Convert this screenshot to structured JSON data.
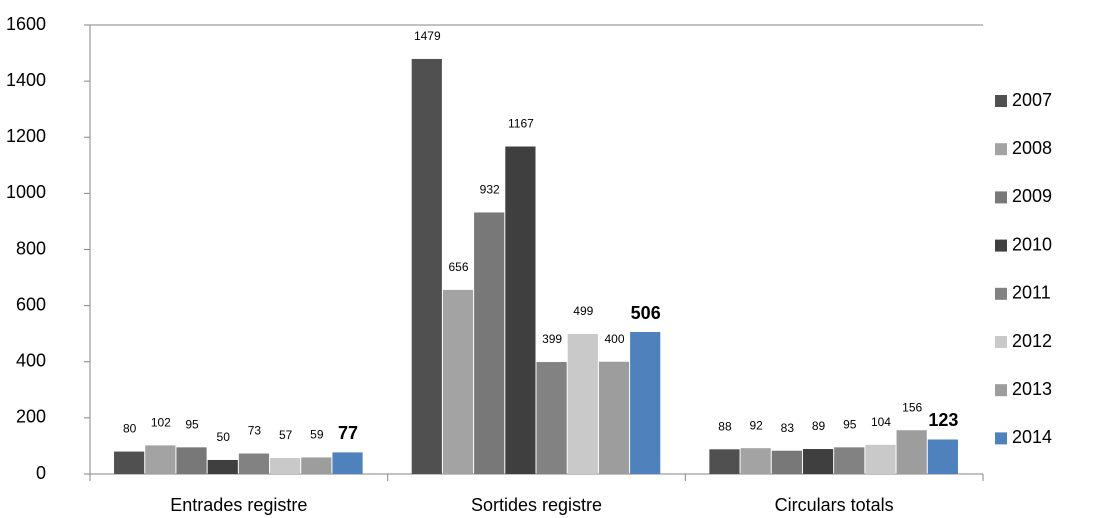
{
  "chart_data": {
    "type": "bar",
    "categories": [
      "Entrades registre",
      "Sortides registre",
      "Circulars totals"
    ],
    "series": [
      {
        "name": "2007",
        "color": "#505050",
        "values": [
          80,
          1479,
          88
        ]
      },
      {
        "name": "2008",
        "color": "#a3a3a3",
        "values": [
          102,
          656,
          92
        ]
      },
      {
        "name": "2009",
        "color": "#787878",
        "values": [
          95,
          932,
          83
        ]
      },
      {
        "name": "2010",
        "color": "#3f3f3f",
        "values": [
          50,
          1167,
          89
        ]
      },
      {
        "name": "2011",
        "color": "#828282",
        "values": [
          73,
          399,
          95
        ]
      },
      {
        "name": "2012",
        "color": "#c9c9c9",
        "values": [
          57,
          499,
          104
        ]
      },
      {
        "name": "2013",
        "color": "#9d9d9d",
        "values": [
          59,
          400,
          156
        ]
      },
      {
        "name": "2014",
        "color": "#4f81bd",
        "values": [
          77,
          506,
          123
        ],
        "bold_labels": true
      }
    ],
    "ylim": [
      0,
      1600
    ],
    "yticks": [
      0,
      200,
      400,
      600,
      800,
      1000,
      1200,
      1400,
      1600
    ],
    "grid": false,
    "legend": "right"
  }
}
